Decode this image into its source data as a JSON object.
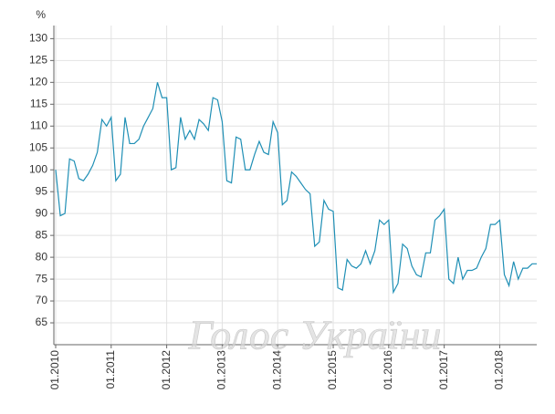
{
  "chart_data": {
    "type": "line",
    "y_unit_label": "%",
    "watermark": "Голос України",
    "categories": [
      "01.2010",
      null,
      null,
      null,
      null,
      null,
      null,
      null,
      null,
      null,
      null,
      null,
      "01.2011",
      null,
      null,
      null,
      null,
      null,
      null,
      null,
      null,
      null,
      null,
      null,
      "01.2012",
      null,
      null,
      null,
      null,
      null,
      null,
      null,
      null,
      null,
      null,
      null,
      "01.2013",
      null,
      null,
      null,
      null,
      null,
      null,
      null,
      null,
      null,
      null,
      null,
      "01.2014",
      null,
      null,
      null,
      null,
      null,
      null,
      null,
      null,
      null,
      null,
      null,
      "01.2015",
      null,
      null,
      null,
      null,
      null,
      null,
      null,
      null,
      null,
      null,
      null,
      "01.2016",
      null,
      null,
      null,
      null,
      null,
      null,
      null,
      null,
      null,
      null,
      null,
      "01.2017",
      null,
      null,
      null,
      null,
      null,
      null,
      null,
      null,
      null,
      null,
      null,
      "01.2018",
      null,
      null,
      null,
      null,
      null,
      null,
      null,
      null
    ],
    "series": [
      {
        "color": "#1f8fb5",
        "values": [
          100,
          89.5,
          90,
          102.5,
          102,
          98,
          97.5,
          99,
          101,
          104,
          111.5,
          110,
          112,
          97.5,
          99,
          112,
          106,
          106,
          107,
          110,
          112,
          114,
          120,
          116.5,
          116.5,
          100,
          100.5,
          112,
          107,
          109,
          107,
          111.5,
          110.5,
          109,
          116.5,
          116,
          111,
          97.5,
          97,
          107.5,
          107,
          100,
          100,
          103.5,
          106.5,
          104,
          103.5,
          111,
          108.5,
          92,
          93,
          99.5,
          98.5,
          97,
          95.5,
          94.5,
          82.5,
          83.5,
          93,
          91,
          90.5,
          73,
          72.5,
          79.5,
          78,
          77.5,
          78.5,
          81.5,
          78.5,
          81.5,
          88.5,
          87.5,
          88.5,
          72,
          74,
          83,
          82,
          78,
          76,
          75.5,
          81,
          81,
          88.5,
          89.5,
          91,
          75,
          74,
          80,
          75,
          77,
          77,
          77.5,
          80,
          82,
          87.5,
          87.5,
          88.5,
          76,
          73.5,
          79,
          75,
          77.5,
          77.5,
          78.5,
          78.5
        ]
      }
    ],
    "ylim": [
      60,
      133
    ],
    "yticks": [
      65,
      70,
      75,
      80,
      85,
      90,
      95,
      100,
      105,
      110,
      115,
      120,
      125,
      130
    ],
    "grid": true
  }
}
